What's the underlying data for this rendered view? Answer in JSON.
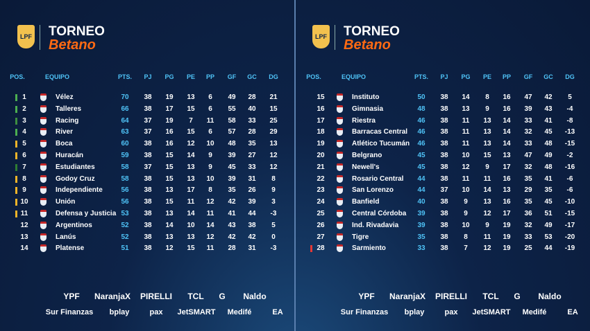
{
  "header": {
    "title": "TORNEO",
    "subtitle": "Betano",
    "logo": "LPF"
  },
  "columns": [
    "POS.",
    "EQUIPO",
    "PTS.",
    "PJ",
    "PG",
    "PE",
    "PP",
    "GF",
    "GC",
    "DG"
  ],
  "tables": [
    {
      "rows": [
        {
          "pos": 1,
          "team": "Vélez",
          "stats": [
            70,
            38,
            19,
            13,
            6,
            49,
            28,
            21
          ],
          "zone": "#4caf50"
        },
        {
          "pos": 2,
          "team": "Talleres",
          "stats": [
            66,
            38,
            17,
            15,
            6,
            55,
            40,
            15
          ],
          "zone": "#4caf50"
        },
        {
          "pos": 3,
          "team": "Racing",
          "stats": [
            64,
            37,
            19,
            7,
            11,
            58,
            33,
            25
          ],
          "zone": "#3e8e41"
        },
        {
          "pos": 4,
          "team": "River",
          "stats": [
            63,
            37,
            16,
            15,
            6,
            57,
            28,
            29
          ],
          "zone": "#4caf50"
        },
        {
          "pos": 5,
          "team": "Boca",
          "stats": [
            60,
            38,
            16,
            12,
            10,
            48,
            35,
            13
          ],
          "zone": "#f0b429"
        },
        {
          "pos": 6,
          "team": "Huracán",
          "stats": [
            59,
            38,
            15,
            14,
            9,
            39,
            27,
            12
          ],
          "zone": "#f0b429"
        },
        {
          "pos": 7,
          "team": "Estudiantes",
          "stats": [
            58,
            37,
            15,
            13,
            9,
            45,
            33,
            12
          ],
          "zone": "#2e7d32"
        },
        {
          "pos": 8,
          "team": "Godoy Cruz",
          "stats": [
            58,
            38,
            15,
            13,
            10,
            39,
            31,
            8
          ],
          "zone": "#f0b429"
        },
        {
          "pos": 9,
          "team": "Independiente",
          "stats": [
            56,
            38,
            13,
            17,
            8,
            35,
            26,
            9
          ],
          "zone": "#f0b429"
        },
        {
          "pos": 10,
          "team": "Unión",
          "stats": [
            56,
            38,
            15,
            11,
            12,
            42,
            39,
            3
          ],
          "zone": "#f0b429"
        },
        {
          "pos": 11,
          "team": "Defensa y Justicia",
          "stats": [
            53,
            38,
            13,
            14,
            11,
            41,
            44,
            -3
          ],
          "zone": "#f0b429"
        },
        {
          "pos": 12,
          "team": "Argentinos",
          "stats": [
            52,
            38,
            14,
            10,
            14,
            43,
            38,
            5
          ]
        },
        {
          "pos": 13,
          "team": "Lanús",
          "stats": [
            52,
            38,
            13,
            13,
            12,
            42,
            42,
            0
          ]
        },
        {
          "pos": 14,
          "team": "Platense",
          "stats": [
            51,
            38,
            12,
            15,
            11,
            28,
            31,
            -3
          ]
        }
      ]
    },
    {
      "rows": [
        {
          "pos": 15,
          "team": "Instituto",
          "stats": [
            50,
            38,
            14,
            8,
            16,
            47,
            42,
            5
          ]
        },
        {
          "pos": 16,
          "team": "Gimnasia",
          "stats": [
            48,
            38,
            13,
            9,
            16,
            39,
            43,
            -4
          ]
        },
        {
          "pos": 17,
          "team": "Riestra",
          "stats": [
            46,
            38,
            11,
            13,
            14,
            33,
            41,
            -8
          ]
        },
        {
          "pos": 18,
          "team": "Barracas Central",
          "stats": [
            46,
            38,
            11,
            13,
            14,
            32,
            45,
            -13
          ]
        },
        {
          "pos": 19,
          "team": "Atlético Tucumán",
          "stats": [
            46,
            38,
            11,
            13,
            14,
            33,
            48,
            -15
          ]
        },
        {
          "pos": 20,
          "team": "Belgrano",
          "stats": [
            45,
            38,
            10,
            15,
            13,
            47,
            49,
            -2
          ]
        },
        {
          "pos": 21,
          "team": "Newell's",
          "stats": [
            45,
            38,
            12,
            9,
            17,
            32,
            48,
            -16
          ]
        },
        {
          "pos": 22,
          "team": "Rosario Central",
          "stats": [
            44,
            38,
            11,
            11,
            16,
            35,
            41,
            -6
          ]
        },
        {
          "pos": 23,
          "team": "San Lorenzo",
          "stats": [
            44,
            37,
            10,
            14,
            13,
            29,
            35,
            -6
          ]
        },
        {
          "pos": 24,
          "team": "Banfield",
          "stats": [
            40,
            38,
            9,
            13,
            16,
            35,
            45,
            -10
          ]
        },
        {
          "pos": 25,
          "team": "Central Córdoba",
          "stats": [
            39,
            38,
            9,
            12,
            17,
            36,
            51,
            -15
          ]
        },
        {
          "pos": 26,
          "team": "Ind. Rivadavia",
          "stats": [
            39,
            38,
            10,
            9,
            19,
            32,
            49,
            -17
          ]
        },
        {
          "pos": 27,
          "team": "Tigre",
          "stats": [
            35,
            38,
            8,
            11,
            19,
            33,
            53,
            -20
          ]
        },
        {
          "pos": 28,
          "team": "Sarmiento",
          "stats": [
            33,
            38,
            7,
            12,
            19,
            25,
            44,
            -19
          ],
          "zone": "#e53935"
        }
      ]
    }
  ],
  "sponsors": [
    [
      "YPF",
      "NaranjaX",
      "PIRELLI",
      "TCL",
      "G",
      "Naldo"
    ],
    [
      "Sur Finanzas",
      "bplay",
      "pax",
      "JetSMART",
      "Medifé",
      "EA"
    ]
  ]
}
